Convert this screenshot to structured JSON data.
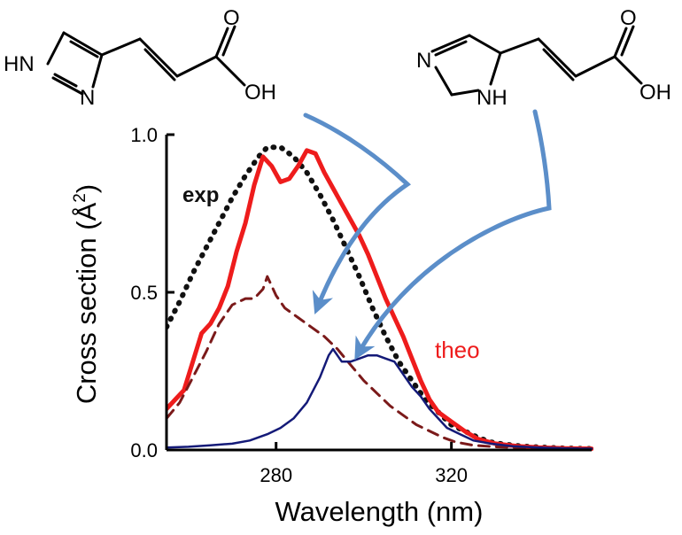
{
  "chart_data": {
    "type": "line",
    "xlabel": "Wavelength (nm)",
    "ylabel_text": "Cross section (Å",
    "ylabel_sup": "2",
    "ylabel_close": ")",
    "xlim": [
      255,
      352
    ],
    "ylim": [
      0,
      1.0
    ],
    "x_ticks": [
      280,
      320
    ],
    "y_ticks": [
      {
        "value": 0.0,
        "label": "0.0"
      },
      {
        "value": 0.5,
        "label": "0.5"
      },
      {
        "value": 1.0,
        "label": "1.0"
      }
    ],
    "grid": false,
    "series": [
      {
        "name": "exp",
        "style": "dotted",
        "color": "#111111",
        "points": [
          [
            255,
            0.39
          ],
          [
            258,
            0.47
          ],
          [
            261,
            0.56
          ],
          [
            264,
            0.64
          ],
          [
            267,
            0.72
          ],
          [
            270,
            0.8
          ],
          [
            273,
            0.87
          ],
          [
            276,
            0.93
          ],
          [
            278,
            0.96
          ],
          [
            281,
            0.96
          ],
          [
            284,
            0.93
          ],
          [
            287,
            0.88
          ],
          [
            290,
            0.81
          ],
          [
            293,
            0.73
          ],
          [
            296,
            0.64
          ],
          [
            299,
            0.55
          ],
          [
            302,
            0.45
          ],
          [
            305,
            0.36
          ],
          [
            308,
            0.28
          ],
          [
            311,
            0.22
          ],
          [
            314,
            0.16
          ],
          [
            317,
            0.12
          ],
          [
            320,
            0.08
          ],
          [
            323,
            0.06
          ],
          [
            326,
            0.04
          ],
          [
            329,
            0.025
          ],
          [
            332,
            0.018
          ],
          [
            336,
            0.012
          ],
          [
            340,
            0.009
          ],
          [
            345,
            0.006
          ],
          [
            352,
            0.004
          ]
        ]
      },
      {
        "name": "theo",
        "style": "solid",
        "color": "#ee1c1c",
        "points": [
          [
            255,
            0.13
          ],
          [
            257,
            0.16
          ],
          [
            259,
            0.19
          ],
          [
            261,
            0.28
          ],
          [
            263,
            0.37
          ],
          [
            265,
            0.4
          ],
          [
            267,
            0.45
          ],
          [
            269,
            0.52
          ],
          [
            271,
            0.63
          ],
          [
            273,
            0.72
          ],
          [
            275,
            0.84
          ],
          [
            277,
            0.93
          ],
          [
            279,
            0.9
          ],
          [
            281,
            0.85
          ],
          [
            283,
            0.86
          ],
          [
            285,
            0.9
          ],
          [
            287,
            0.95
          ],
          [
            289,
            0.94
          ],
          [
            291,
            0.88
          ],
          [
            293,
            0.83
          ],
          [
            295,
            0.78
          ],
          [
            297,
            0.73
          ],
          [
            299,
            0.68
          ],
          [
            301,
            0.62
          ],
          [
            303,
            0.55
          ],
          [
            305,
            0.48
          ],
          [
            307,
            0.42
          ],
          [
            309,
            0.36
          ],
          [
            311,
            0.29
          ],
          [
            313,
            0.22
          ],
          [
            315,
            0.16
          ],
          [
            317,
            0.12
          ],
          [
            320,
            0.09
          ],
          [
            323,
            0.06
          ],
          [
            326,
            0.035
          ],
          [
            330,
            0.02
          ],
          [
            335,
            0.012
          ],
          [
            340,
            0.008
          ],
          [
            346,
            0.005
          ],
          [
            352,
            0.004
          ]
        ]
      },
      {
        "name": "",
        "style": "dashed",
        "color": "#7b1a1a",
        "points": [
          [
            255,
            0.1
          ],
          [
            258,
            0.15
          ],
          [
            261,
            0.23
          ],
          [
            264,
            0.31
          ],
          [
            267,
            0.4
          ],
          [
            270,
            0.46
          ],
          [
            273,
            0.48
          ],
          [
            275,
            0.48
          ],
          [
            277,
            0.51
          ],
          [
            278,
            0.55
          ],
          [
            280,
            0.49
          ],
          [
            282,
            0.45
          ],
          [
            285,
            0.42
          ],
          [
            288,
            0.39
          ],
          [
            291,
            0.36
          ],
          [
            294,
            0.32
          ],
          [
            297,
            0.27
          ],
          [
            300,
            0.22
          ],
          [
            303,
            0.18
          ],
          [
            306,
            0.14
          ],
          [
            309,
            0.11
          ],
          [
            312,
            0.08
          ],
          [
            315,
            0.06
          ],
          [
            318,
            0.04
          ],
          [
            321,
            0.025
          ],
          [
            325,
            0.015
          ],
          [
            330,
            0.01
          ],
          [
            336,
            0.007
          ],
          [
            344,
            0.005
          ],
          [
            352,
            0.004
          ]
        ]
      },
      {
        "name": "",
        "style": "solid",
        "color": "#141a78",
        "points": [
          [
            255,
            0.008
          ],
          [
            260,
            0.01
          ],
          [
            265,
            0.015
          ],
          [
            270,
            0.02
          ],
          [
            274,
            0.03
          ],
          [
            278,
            0.05
          ],
          [
            281,
            0.07
          ],
          [
            284,
            0.1
          ],
          [
            287,
            0.15
          ],
          [
            290,
            0.23
          ],
          [
            292,
            0.3
          ],
          [
            293,
            0.32
          ],
          [
            295,
            0.28
          ],
          [
            297,
            0.28
          ],
          [
            299,
            0.29
          ],
          [
            301,
            0.3
          ],
          [
            303,
            0.3
          ],
          [
            305,
            0.29
          ],
          [
            307,
            0.28
          ],
          [
            309,
            0.24
          ],
          [
            311,
            0.2
          ],
          [
            313,
            0.17
          ],
          [
            315,
            0.13
          ],
          [
            317,
            0.1
          ],
          [
            319,
            0.07
          ],
          [
            322,
            0.05
          ],
          [
            325,
            0.03
          ],
          [
            329,
            0.02
          ],
          [
            334,
            0.012
          ],
          [
            340,
            0.008
          ],
          [
            346,
            0.005
          ],
          [
            352,
            0.004
          ]
        ]
      }
    ],
    "annotations": [
      {
        "text": "exp",
        "color": "#111111"
      },
      {
        "text": "theo",
        "color": "#ee1c1c"
      }
    ]
  },
  "molecules": {
    "left": {
      "nh": "HN",
      "n": "N",
      "o": "O",
      "oh": "OH"
    },
    "right": {
      "n": "N",
      "nh": "NH",
      "o": "O",
      "oh": "OH"
    }
  },
  "colors": {
    "arrow": "#5b8ec9",
    "axis": "#000000"
  }
}
